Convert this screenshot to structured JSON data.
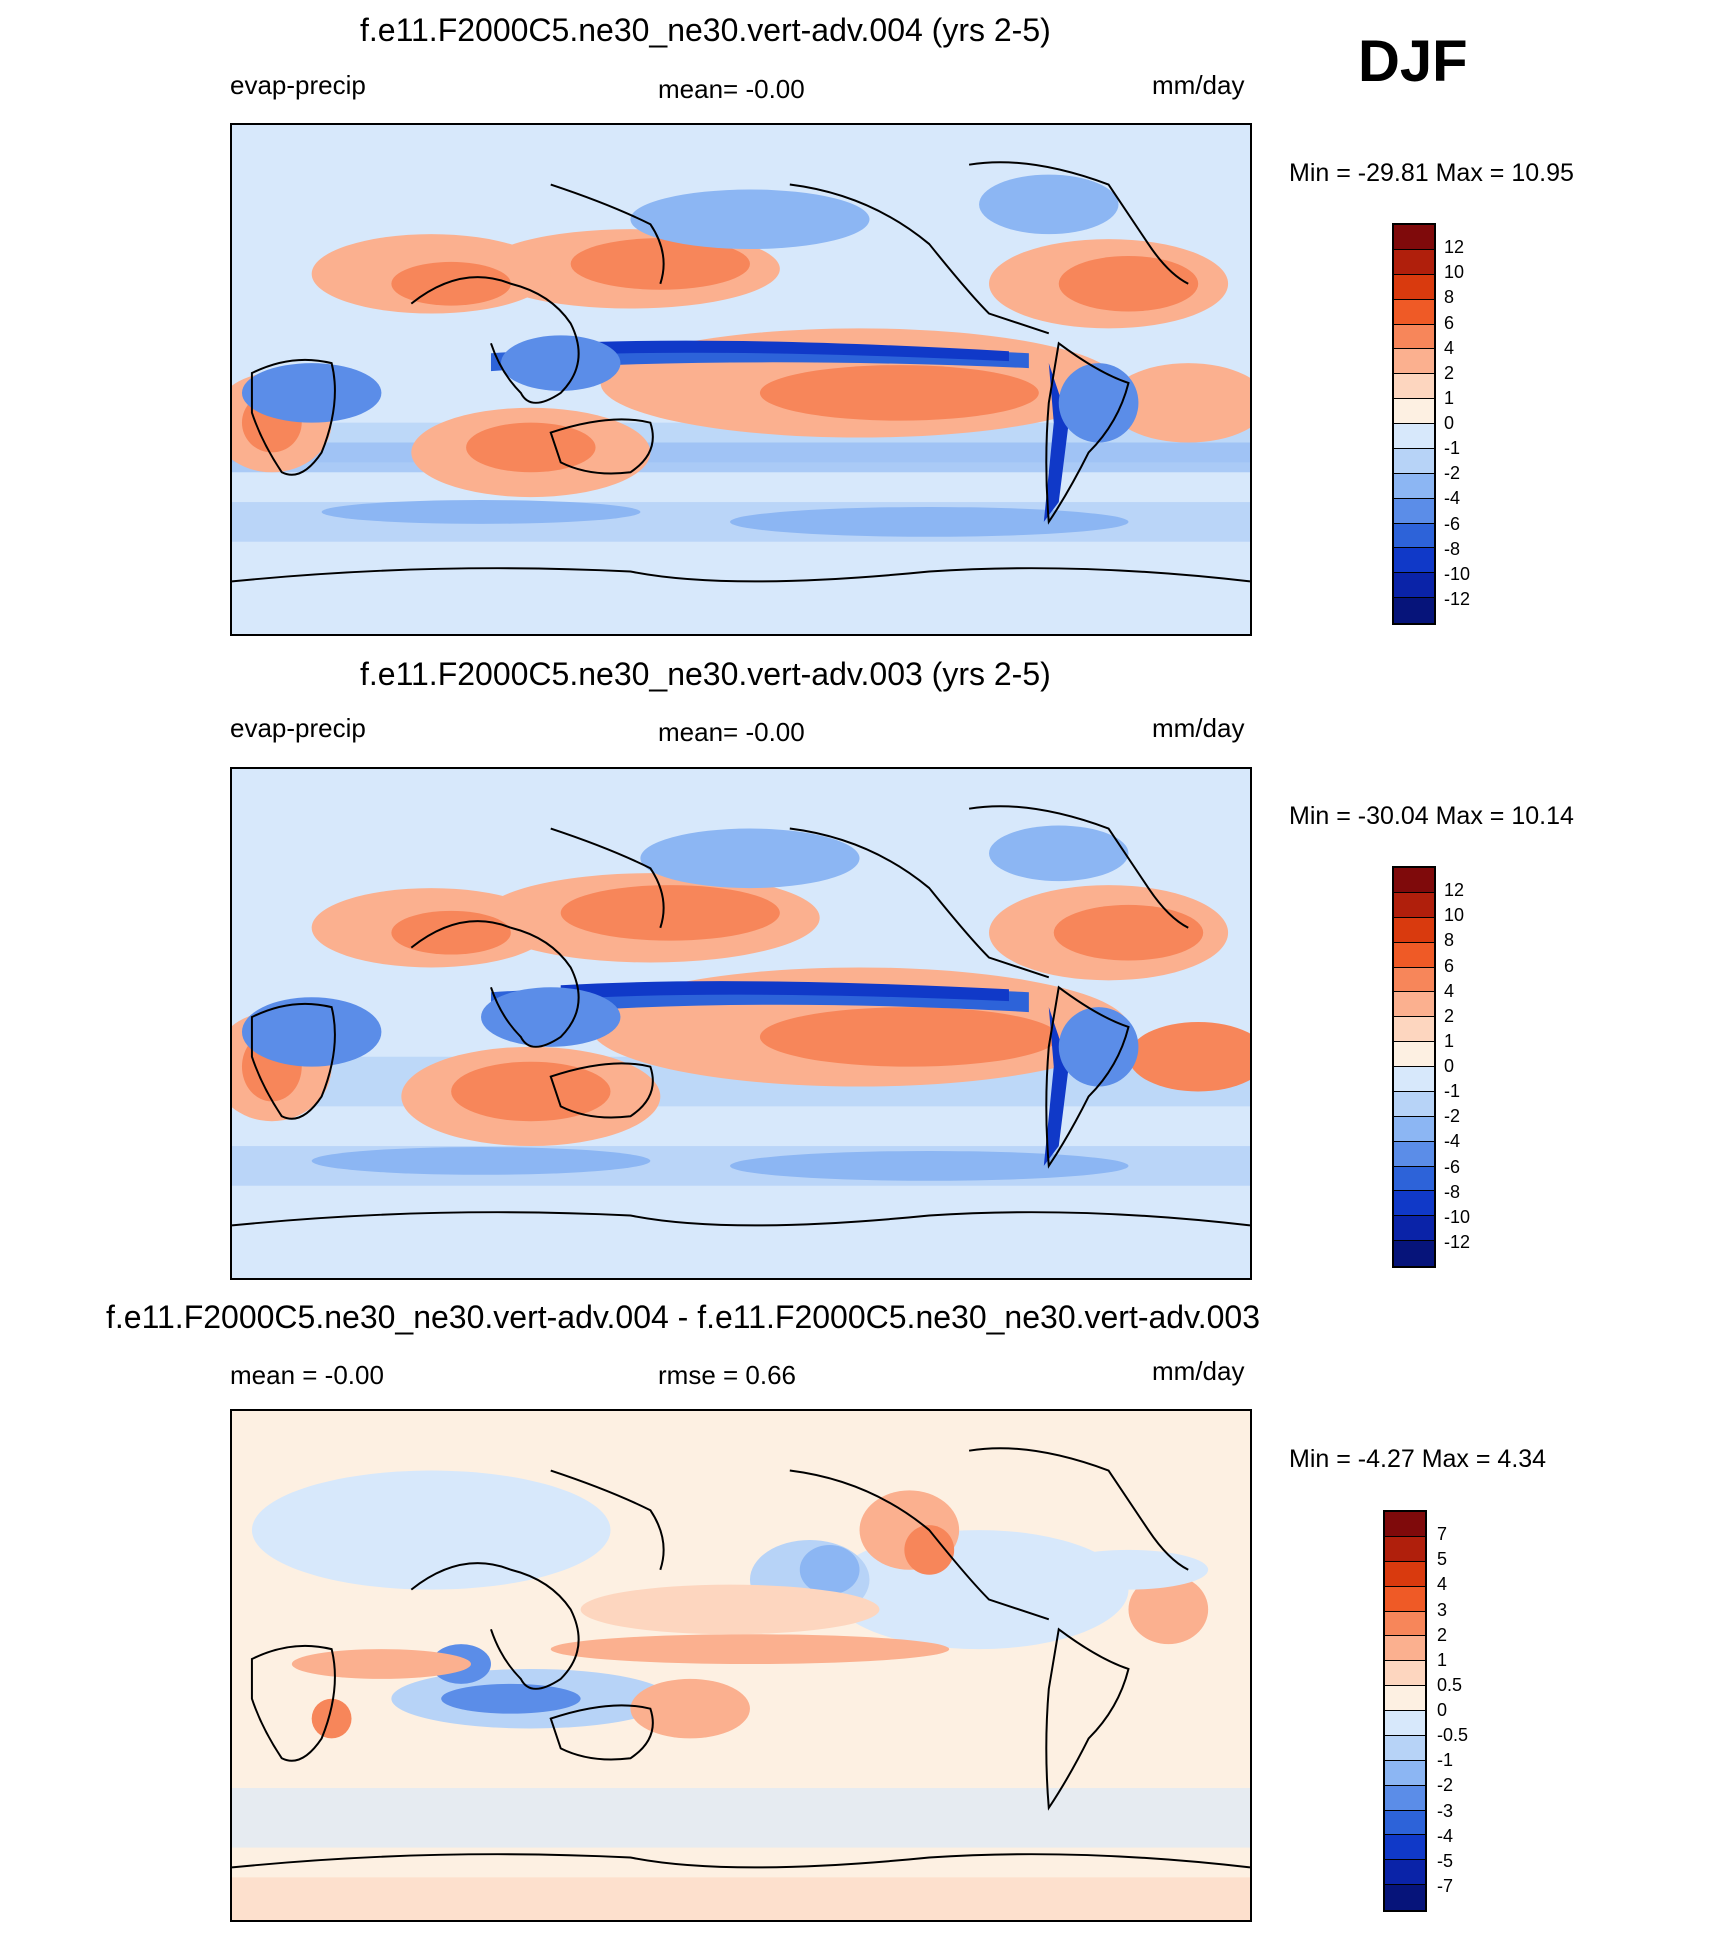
{
  "season": "DJF",
  "panels": [
    {
      "id": "p1",
      "title": "f.e11.F2000C5.ne30_ne30.vert-adv.004 (yrs 2-5)",
      "left_label": "evap-precip",
      "center_label": "mean=  -0.00",
      "right_label": "mm/day",
      "minmax": "Min = -29.81 Max =  10.95",
      "colorbar_labels": [
        "12",
        "10",
        "8",
        "6",
        "4",
        "2",
        "1",
        "0",
        "-1",
        "-2",
        "-4",
        "-6",
        "-8",
        "-10",
        "-12"
      ],
      "colorbar_colors": [
        "#7f0a0b",
        "#b01f0c",
        "#d93a0e",
        "#ef5a26",
        "#f7865a",
        "#fbb08f",
        "#fdd6bf",
        "#fdf0e2",
        "#d7e8fb",
        "#b7d3f7",
        "#8cb6f3",
        "#5b8de8",
        "#2d63d9",
        "#1039c8",
        "#0a23a8",
        "#06147a"
      ],
      "colors": {
        "land": "#d6e8fb",
        "ocean": "#d6e8fb"
      }
    },
    {
      "id": "p2",
      "title": "f.e11.F2000C5.ne30_ne30.vert-adv.003 (yrs 2-5)",
      "left_label": "evap-precip",
      "center_label": "mean=  -0.00",
      "right_label": "mm/day",
      "minmax": "Min = -30.04 Max =  10.14",
      "colorbar_labels": [
        "12",
        "10",
        "8",
        "6",
        "4",
        "2",
        "1",
        "0",
        "-1",
        "-2",
        "-4",
        "-6",
        "-8",
        "-10",
        "-12"
      ],
      "colorbar_colors": [
        "#7f0a0b",
        "#b01f0c",
        "#d93a0e",
        "#ef5a26",
        "#f7865a",
        "#fbb08f",
        "#fdd6bf",
        "#fdf0e2",
        "#d7e8fb",
        "#b7d3f7",
        "#8cb6f3",
        "#5b8de8",
        "#2d63d9",
        "#1039c8",
        "#0a23a8",
        "#06147a"
      ]
    },
    {
      "id": "p3",
      "title": "f.e11.F2000C5.ne30_ne30.vert-adv.004 - f.e11.F2000C5.ne30_ne30.vert-adv.003",
      "left_label": "mean =  -0.00",
      "center_label": "rmse =   0.66",
      "right_label": "mm/day",
      "minmax": "Min =  -4.27 Max =   4.34",
      "colorbar_labels": [
        "7",
        "5",
        "4",
        "3",
        "2",
        "1",
        "0.5",
        "0",
        "-0.5",
        "-1",
        "-2",
        "-3",
        "-4",
        "-5",
        "-7"
      ],
      "colorbar_colors": [
        "#7f0a0b",
        "#b01f0c",
        "#d93a0e",
        "#ef5a26",
        "#f7865a",
        "#fbb08f",
        "#fdd6bf",
        "#fdf0e2",
        "#d7e8fb",
        "#b7d3f7",
        "#8cb6f3",
        "#5b8de8",
        "#2d63d9",
        "#1039c8",
        "#0a23a8",
        "#06147a"
      ]
    }
  ]
}
